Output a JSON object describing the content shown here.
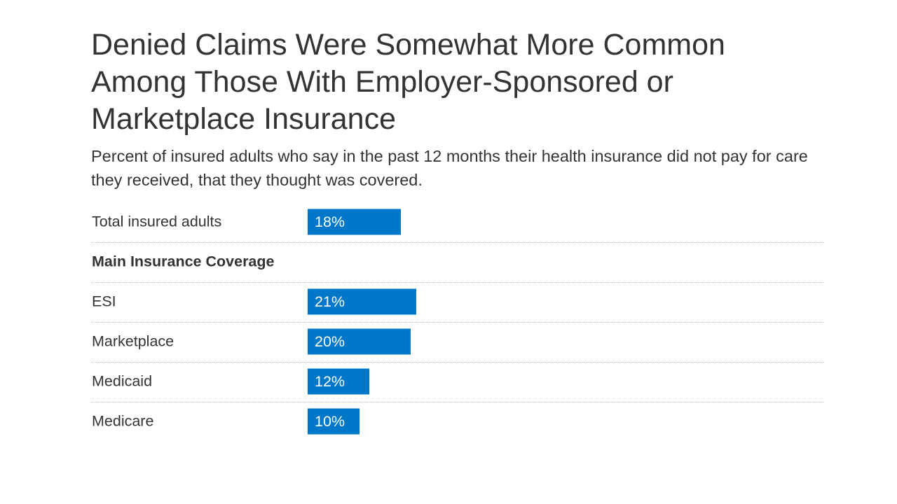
{
  "chart_data": {
    "type": "bar",
    "orientation": "horizontal",
    "title": "Denied Claims Were Somewhat More Common Among Those With Employer-Sponsored or Marketplace Insurance",
    "subtitle": "Percent of insured adults who say in the past 12 months their health insurance did not pay for care they received, that they thought was covered.",
    "rows": [
      {
        "label": "Total insured adults",
        "value": 18,
        "data_label": "18%"
      },
      {
        "label": "Main Insurance Coverage",
        "header": true
      },
      {
        "label": "ESI",
        "value": 21,
        "data_label": "21%"
      },
      {
        "label": "Marketplace",
        "value": 20,
        "data_label": "20%"
      },
      {
        "label": "Medicaid",
        "value": 12,
        "data_label": "12%"
      },
      {
        "label": "Medicare",
        "value": 10,
        "data_label": "10%"
      }
    ],
    "bar_color": "#0077c8",
    "grid": false
  }
}
